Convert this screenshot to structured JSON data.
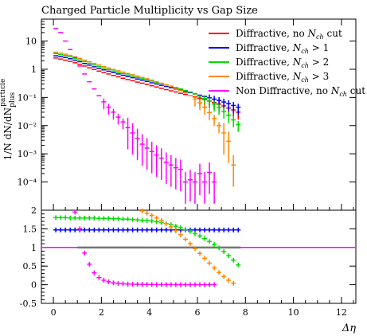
{
  "chart_data": [
    {
      "type": "scatter",
      "panel": "main",
      "title": "Charged Particle Multiplicity vs Gap Size",
      "ylabel": "1/N dN/dN_plus^particle",
      "yscale": "log",
      "xlim": [
        -0.5,
        12.6
      ],
      "ylim": [
        1e-05,
        60
      ],
      "y_tick_labels": [
        "10",
        "1",
        "10⁻¹",
        "10⁻²",
        "10⁻³",
        "10⁻⁴"
      ],
      "y_tick_values": [
        10,
        1,
        0.1,
        0.01,
        0.001,
        0.0001
      ],
      "legend_position": "top-right",
      "series": [
        {
          "name": "Diffractive, no N_ch cut",
          "color": "#ff0000",
          "x": [
            0.1,
            0.3,
            0.5,
            0.7,
            0.9,
            1.1,
            1.3,
            1.5,
            1.7,
            1.9,
            2.1,
            2.3,
            2.5,
            2.7,
            2.9,
            3.1,
            3.3,
            3.5,
            3.7,
            3.9,
            4.1,
            4.3,
            4.5,
            4.7,
            4.9,
            5.1,
            5.3,
            5.5,
            5.7,
            5.9,
            6.1,
            6.3,
            6.5,
            6.7,
            6.9,
            7.1,
            7.3,
            7.5,
            7.7
          ],
          "y": [
            2.5,
            2.3,
            2.1,
            1.9,
            1.7,
            1.5,
            1.3,
            1.12,
            0.98,
            0.86,
            0.76,
            0.68,
            0.6,
            0.54,
            0.48,
            0.43,
            0.39,
            0.35,
            0.32,
            0.29,
            0.26,
            0.235,
            0.21,
            0.19,
            0.172,
            0.156,
            0.14,
            0.127,
            0.115,
            0.104,
            0.094,
            0.084,
            0.075,
            0.066,
            0.058,
            0.05,
            0.042,
            0.036,
            0.03
          ]
        },
        {
          "name": "Diffractive, N_ch > 1",
          "color": "#0000ff",
          "x": [
            0.1,
            0.3,
            0.5,
            0.7,
            0.9,
            1.1,
            1.3,
            1.5,
            1.7,
            1.9,
            2.1,
            2.3,
            2.5,
            2.7,
            2.9,
            3.1,
            3.3,
            3.5,
            3.7,
            3.9,
            4.1,
            4.3,
            4.5,
            4.7,
            4.9,
            5.1,
            5.3,
            5.5,
            5.7,
            5.9,
            6.1,
            6.3,
            6.5,
            6.7,
            6.9,
            7.1,
            7.3,
            7.5,
            7.7
          ],
          "y": [
            3.0,
            2.8,
            2.6,
            2.35,
            2.1,
            1.85,
            1.6,
            1.4,
            1.22,
            1.08,
            0.95,
            0.85,
            0.76,
            0.68,
            0.61,
            0.55,
            0.5,
            0.45,
            0.41,
            0.37,
            0.33,
            0.3,
            0.27,
            0.245,
            0.22,
            0.2,
            0.18,
            0.163,
            0.148,
            0.134,
            0.12,
            0.108,
            0.097,
            0.087,
            0.078,
            0.069,
            0.06,
            0.052,
            0.045
          ]
        },
        {
          "name": "Diffractive, N_ch > 2",
          "color": "#00dd00",
          "x": [
            0.1,
            0.3,
            0.5,
            0.7,
            0.9,
            1.1,
            1.3,
            1.5,
            1.7,
            1.9,
            2.1,
            2.3,
            2.5,
            2.7,
            2.9,
            3.1,
            3.3,
            3.5,
            3.7,
            3.9,
            4.1,
            4.3,
            4.5,
            4.7,
            4.9,
            5.1,
            5.3,
            5.5,
            5.7,
            5.9,
            6.1,
            6.3,
            6.5,
            6.7,
            6.9,
            7.1,
            7.3,
            7.5,
            7.7
          ],
          "y": [
            3.6,
            3.3,
            3.05,
            2.75,
            2.45,
            2.15,
            1.86,
            1.62,
            1.42,
            1.25,
            1.1,
            0.98,
            0.87,
            0.78,
            0.7,
            0.63,
            0.57,
            0.51,
            0.46,
            0.42,
            0.38,
            0.34,
            0.31,
            0.28,
            0.25,
            0.225,
            0.2,
            0.177,
            0.155,
            0.133,
            0.112,
            0.092,
            0.074,
            0.058,
            0.044,
            0.032,
            0.023,
            0.016,
            0.011
          ]
        },
        {
          "name": "Diffractive, N_ch > 3",
          "color": "#ff8800",
          "x": [
            0.1,
            0.3,
            0.5,
            0.7,
            0.9,
            1.1,
            1.3,
            1.5,
            1.7,
            1.9,
            2.1,
            2.3,
            2.5,
            2.7,
            2.9,
            3.1,
            3.3,
            3.5,
            3.7,
            3.9,
            4.1,
            4.3,
            4.5,
            4.7,
            4.9,
            5.1,
            5.3,
            5.5,
            5.7,
            5.9,
            6.1,
            6.3,
            6.5,
            6.7,
            6.9,
            7.1,
            7.3,
            7.5
          ],
          "y": [
            4.0,
            3.7,
            3.4,
            3.1,
            2.75,
            2.42,
            2.1,
            1.83,
            1.6,
            1.41,
            1.24,
            1.1,
            0.98,
            0.88,
            0.79,
            0.71,
            0.64,
            0.57,
            0.51,
            0.46,
            0.41,
            0.36,
            0.32,
            0.28,
            0.245,
            0.21,
            0.175,
            0.145,
            0.115,
            0.088,
            0.065,
            0.045,
            0.029,
            0.018,
            0.01,
            0.0055,
            0.0028,
            0.0004
          ]
        },
        {
          "name": "Non Diffractive, no N_ch cut",
          "color": "#ff00ff",
          "x": [
            0.1,
            0.3,
            0.5,
            0.7,
            0.9,
            1.1,
            1.3,
            1.5,
            1.7,
            1.9,
            2.1,
            2.3,
            2.5,
            2.7,
            2.9,
            3.1,
            3.3,
            3.5,
            3.7,
            3.9,
            4.1,
            4.3,
            4.5,
            4.7,
            4.9,
            5.1,
            5.3,
            5.5,
            5.7,
            5.9,
            6.1,
            6.3,
            6.5,
            6.7
          ],
          "y": [
            28,
            20,
            10,
            5.0,
            2.6,
            1.3,
            0.68,
            0.36,
            0.2,
            0.115,
            0.07,
            0.045,
            0.03,
            0.02,
            0.0135,
            0.0085,
            0.0055,
            0.0035,
            0.0022,
            0.0016,
            0.0012,
            0.0009,
            0.0007,
            0.0005,
            0.0004,
            0.00032,
            0.00028,
            0.0001,
            0.00012,
            0.0001,
            0.0002,
            0.0001,
            0.00022,
            0.0001
          ]
        }
      ]
    },
    {
      "type": "scatter",
      "panel": "ratio",
      "xlabel": "Δη",
      "xlim": [
        -0.5,
        12.6
      ],
      "ylim": [
        -0.5,
        2.0
      ],
      "x_tick_labels": [
        "0",
        "2",
        "4",
        "6",
        "8",
        "10",
        "12"
      ],
      "x_tick_values": [
        0,
        2,
        4,
        6,
        8,
        10,
        12
      ],
      "y_tick_labels": [
        "-0.5",
        "0",
        "0.5",
        "1",
        "1.5",
        "2"
      ],
      "y_tick_values": [
        -0.5,
        0,
        0.5,
        1,
        1.5,
        2
      ],
      "reference": {
        "y": 1,
        "x_start": 1.0,
        "x_end": 7.8,
        "band_color": "#c8c8c8"
      },
      "series": [
        {
          "color": "#0000ff",
          "x": [
            0.1,
            0.3,
            0.5,
            0.7,
            0.9,
            1.1,
            1.3,
            1.5,
            1.7,
            1.9,
            2.1,
            2.3,
            2.5,
            2.7,
            2.9,
            3.1,
            3.3,
            3.5,
            3.7,
            3.9,
            4.1,
            4.3,
            4.5,
            4.7,
            4.9,
            5.1,
            5.3,
            5.5,
            5.7,
            5.9,
            6.1,
            6.3,
            6.5,
            6.7,
            6.9,
            7.1,
            7.3,
            7.5,
            7.7
          ],
          "y": [
            1.47,
            1.47,
            1.47,
            1.47,
            1.47,
            1.47,
            1.47,
            1.47,
            1.47,
            1.47,
            1.47,
            1.47,
            1.47,
            1.47,
            1.47,
            1.47,
            1.47,
            1.47,
            1.47,
            1.47,
            1.47,
            1.47,
            1.47,
            1.47,
            1.47,
            1.47,
            1.47,
            1.47,
            1.47,
            1.47,
            1.47,
            1.47,
            1.47,
            1.47,
            1.47,
            1.47,
            1.47,
            1.47,
            1.47
          ]
        },
        {
          "color": "#00dd00",
          "x": [
            0.1,
            0.3,
            0.5,
            0.7,
            0.9,
            1.1,
            1.3,
            1.5,
            1.7,
            1.9,
            2.1,
            2.3,
            2.5,
            2.7,
            2.9,
            3.1,
            3.3,
            3.5,
            3.7,
            3.9,
            4.1,
            4.3,
            4.5,
            4.7,
            4.9,
            5.1,
            5.3,
            5.5,
            5.7,
            5.9,
            6.1,
            6.3,
            6.5,
            6.7,
            6.9,
            7.1,
            7.3,
            7.5,
            7.7
          ],
          "y": [
            1.8,
            1.8,
            1.8,
            1.79,
            1.79,
            1.79,
            1.79,
            1.79,
            1.79,
            1.78,
            1.78,
            1.78,
            1.77,
            1.77,
            1.76,
            1.76,
            1.75,
            1.74,
            1.73,
            1.72,
            1.71,
            1.69,
            1.67,
            1.64,
            1.61,
            1.57,
            1.53,
            1.48,
            1.43,
            1.37,
            1.31,
            1.24,
            1.16,
            1.08,
            0.99,
            0.89,
            0.78,
            0.66,
            0.53
          ]
        },
        {
          "color": "#ff8800",
          "x": [
            3.7,
            3.9,
            4.1,
            4.3,
            4.5,
            4.7,
            4.9,
            5.1,
            5.3,
            5.5,
            5.7,
            5.9,
            6.1,
            6.3,
            6.5,
            6.7,
            6.9,
            7.1,
            7.3,
            7.5
          ],
          "y": [
            1.98,
            1.92,
            1.86,
            1.79,
            1.72,
            1.64,
            1.55,
            1.45,
            1.34,
            1.22,
            1.1,
            0.97,
            0.84,
            0.71,
            0.58,
            0.45,
            0.33,
            0.22,
            0.12,
            0.04
          ]
        },
        {
          "color": "#ff00ff",
          "x": [
            0.9,
            1.1,
            1.3,
            1.5,
            1.7,
            1.9,
            2.1,
            2.3,
            2.5,
            2.7,
            2.9,
            3.1,
            3.3,
            3.5,
            3.7,
            3.9,
            4.1,
            4.3,
            4.5,
            4.7,
            4.9,
            5.1,
            5.3,
            5.5,
            5.7,
            5.9,
            6.1,
            6.3,
            6.5,
            6.7
          ],
          "y": [
            1.95,
            1.5,
            0.85,
            0.55,
            0.32,
            0.19,
            0.12,
            0.08,
            0.05,
            0.035,
            0.025,
            0.018,
            0.014,
            0.011,
            0.009,
            0.007,
            0.006,
            0.005,
            0.004,
            0.004,
            0.003,
            0.003,
            0.003,
            0.002,
            0.002,
            0.002,
            0.002,
            0.002,
            0.002,
            0.002
          ]
        }
      ]
    }
  ]
}
